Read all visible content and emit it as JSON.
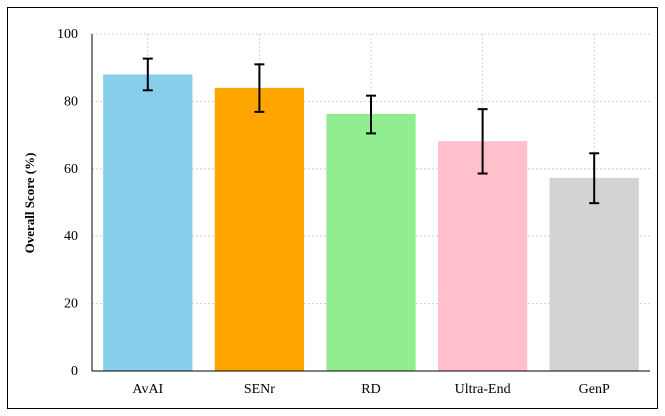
{
  "chart_data": {
    "type": "bar",
    "categories": [
      "AvAI",
      "SENr",
      "RD",
      "Ultra-End",
      "GenP"
    ],
    "values": [
      88,
      84,
      76.3,
      68.2,
      57.3
    ],
    "errors": [
      [
        83.3,
        92.7
      ],
      [
        76.9,
        91
      ],
      [
        70.5,
        81.7
      ],
      [
        58.6,
        77.7
      ],
      [
        49.8,
        64.6
      ]
    ],
    "colors": [
      "#87ceeb",
      "#ffa500",
      "#90ee90",
      "#ffc0cb",
      "#d3d3d3"
    ],
    "title": "",
    "xlabel": "",
    "ylabel": "Overall Score (%)",
    "ylim": [
      0,
      100
    ],
    "yticks": [
      "0",
      "20",
      "40",
      "60",
      "80",
      "100"
    ],
    "grid": true,
    "legend": "none"
  }
}
